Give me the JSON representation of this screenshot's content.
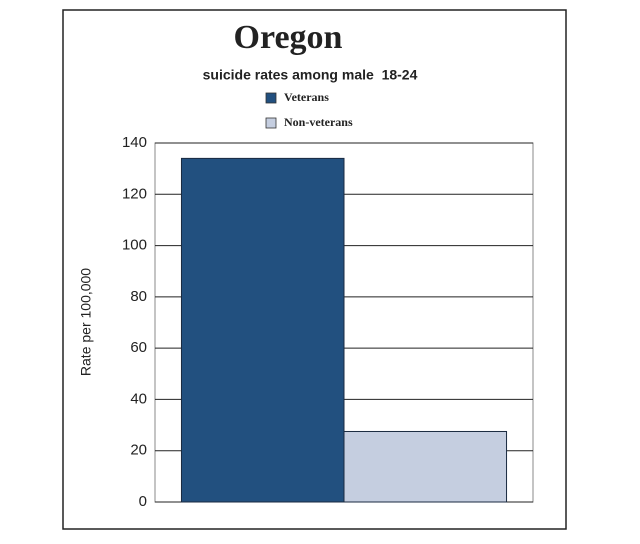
{
  "chart_data": {
    "type": "bar",
    "title": "Oregon",
    "subtitle": "suicide rates among male  18-24",
    "y_label": "Rate per 100,000",
    "categories": [
      null
    ],
    "series": [
      {
        "name": "Veterans",
        "color": "#22507f",
        "values": [
          134
        ]
      },
      {
        "name": "Non-veterans",
        "color": "#c5cee0",
        "values": [
          27.5
        ]
      }
    ],
    "ylim": [
      0,
      140
    ],
    "yticks": [
      0,
      20,
      40,
      60,
      80,
      100,
      120,
      140
    ],
    "grid": true
  }
}
